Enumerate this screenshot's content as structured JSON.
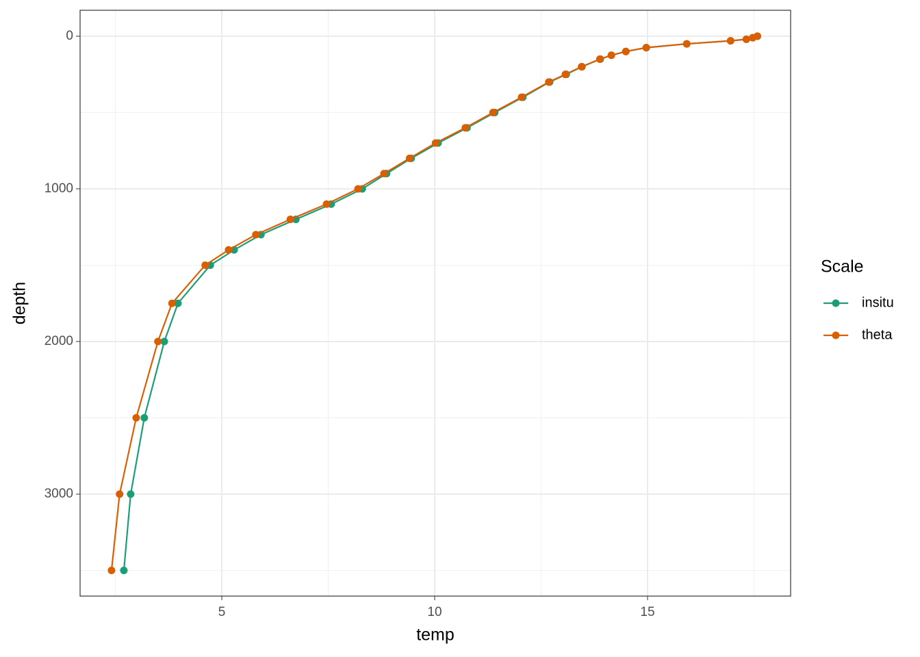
{
  "chart_data": {
    "type": "line",
    "x_label": "temp",
    "y_label": "depth",
    "legend_title": "Scale",
    "legend_position": "right",
    "xlim": [
      1.672,
      18.36
    ],
    "ylim": [
      3668,
      -170
    ],
    "y_reversed": true,
    "xticks": [
      5,
      10,
      15
    ],
    "yticks": [
      0,
      1000,
      2000,
      3000
    ],
    "xminorticks": [
      2.5,
      7.5,
      12.5,
      17.5
    ],
    "yminorticks": [
      500,
      1500,
      2500,
      3500
    ],
    "grid": true,
    "markers": true,
    "series": [
      {
        "name": "insitu",
        "color": "#1b9e77",
        "x": [
          17.58,
          17.47,
          17.32,
          16.95,
          15.92,
          14.97,
          14.49,
          14.15,
          13.89,
          13.46,
          13.09,
          12.7,
          12.07,
          11.41,
          10.76,
          10.08,
          9.45,
          8.87,
          8.3,
          7.57,
          6.74,
          5.92,
          5.29,
          4.73,
          3.97,
          3.65,
          3.18,
          2.86,
          2.7
        ],
        "values": [
          0,
          10,
          20,
          30,
          50,
          75,
          100,
          125,
          150,
          200,
          250,
          300,
          400,
          500,
          600,
          700,
          800,
          900,
          1000,
          1100,
          1200,
          1300,
          1400,
          1500,
          1750,
          2000,
          2500,
          3000,
          3500
        ]
      },
      {
        "name": "theta",
        "color": "#d95f02",
        "x": [
          17.58,
          17.47,
          17.32,
          16.95,
          15.92,
          14.97,
          14.49,
          14.15,
          13.88,
          13.45,
          13.07,
          12.68,
          12.04,
          11.37,
          10.72,
          10.02,
          9.41,
          8.81,
          8.2,
          7.46,
          6.61,
          5.8,
          5.16,
          4.61,
          3.83,
          3.5,
          2.99,
          2.6,
          2.41
        ],
        "values": [
          0,
          10,
          20,
          30,
          50,
          75,
          100,
          125,
          150,
          200,
          250,
          300,
          400,
          500,
          600,
          700,
          800,
          900,
          1000,
          1100,
          1200,
          1300,
          1400,
          1500,
          1750,
          2000,
          2500,
          3000,
          3500
        ]
      }
    ]
  }
}
